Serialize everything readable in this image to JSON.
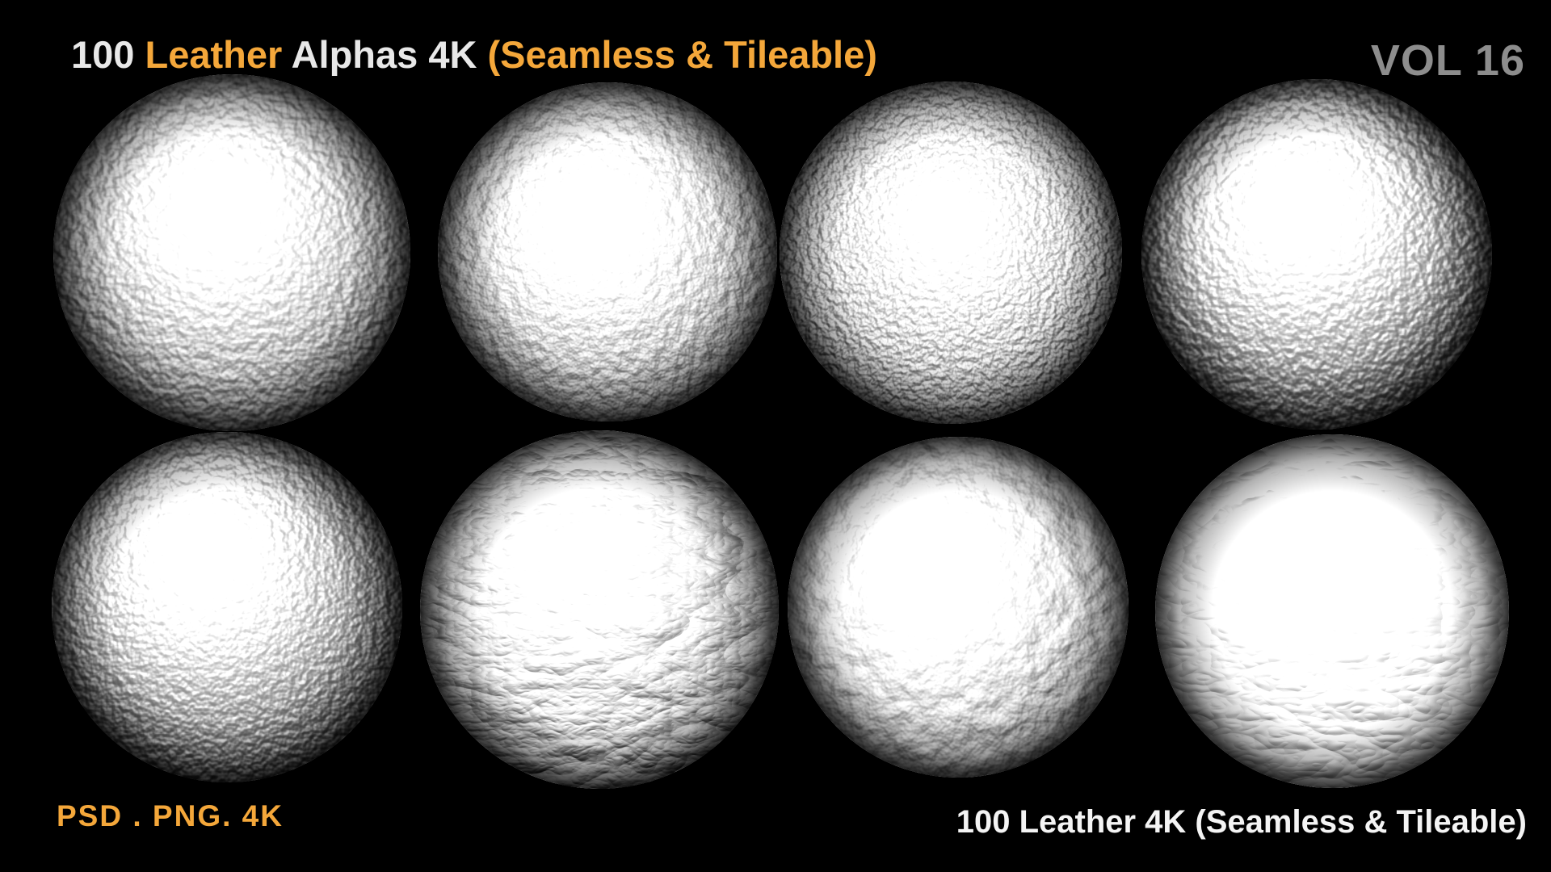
{
  "header": {
    "title_segments": [
      {
        "text": "100 ",
        "color": "#e8e8e8"
      },
      {
        "text": "Leather",
        "color": "#f4a73a"
      },
      {
        "text": " Alphas 4K ",
        "color": "#e8e8e8"
      },
      {
        "text": "(Seamless & Tileable)",
        "color": "#f4a73a"
      }
    ],
    "volume_label": "VOL 16"
  },
  "footer": {
    "file_formats": "PSD . PNG. 4K",
    "product_label": "100 Leather 4K (Seamless & Tileable)"
  },
  "colors": {
    "background": "#000000",
    "accent_orange": "#f4a73a",
    "heading_white": "#e8e8e8",
    "volume_gray": "#8d8d8d",
    "footer_white": "#f4f4f4"
  },
  "spheres": [
    {
      "name": "leather-sphere-1",
      "row": 1,
      "col": 1,
      "texture": "fine grain matte",
      "render": {
        "type": "fractalNoise",
        "freq": "0.095",
        "octaves": 2,
        "seed": 3,
        "surface": 1.6,
        "spec_const": 0.8,
        "spec_exp": 10,
        "diffuse": false,
        "hx": 0.46,
        "hy": 0.36,
        "brightness": 1.0
      }
    },
    {
      "name": "leather-sphere-2",
      "row": 1,
      "col": 2,
      "texture": "fine grain",
      "render": {
        "type": "fractalNoise",
        "freq": "0.075",
        "octaves": 3,
        "seed": 11,
        "surface": 1.8,
        "spec_const": 0.85,
        "spec_exp": 8,
        "diffuse": false,
        "hx": 0.44,
        "hy": 0.38,
        "brightness": 1.0
      }
    },
    {
      "name": "leather-sphere-3",
      "row": 1,
      "col": 3,
      "texture": "pebbled speckled sheen",
      "render": {
        "type": "fractalNoise",
        "freq": "0.13",
        "octaves": 2,
        "seed": 7,
        "surface": 2.1,
        "spec_const": 0.8,
        "spec_exp": 6,
        "diffuse": false,
        "hx": 0.48,
        "hy": 0.38,
        "brightness": 0.98
      }
    },
    {
      "name": "leather-sphere-4",
      "row": 1,
      "col": 4,
      "texture": "smooth glossy grain",
      "render": {
        "type": "fractalNoise",
        "freq": "0.10",
        "octaves": 2,
        "seed": 5,
        "surface": 1.3,
        "spec_const": 1.1,
        "spec_exp": 18,
        "diffuse": false,
        "hx": 0.44,
        "hy": 0.34,
        "brightness": 1.04
      }
    },
    {
      "name": "leather-sphere-5",
      "row": 2,
      "col": 1,
      "texture": "soft fine grain",
      "render": {
        "type": "fractalNoise",
        "freq": "0.11",
        "octaves": 2,
        "seed": 2,
        "surface": 1.2,
        "spec_const": 1.0,
        "spec_exp": 16,
        "diffuse": false,
        "hx": 0.42,
        "hy": 0.33,
        "brightness": 1.02
      }
    },
    {
      "name": "leather-sphere-6",
      "row": 2,
      "col": 2,
      "texture": "deep wrinkled creases",
      "render": {
        "type": "turbulence",
        "freq": "0.012 0.024",
        "octaves": 4,
        "seed": 9,
        "surface": 3.6,
        "spec_const": 0.95,
        "spec_exp": 7,
        "diffuse": true,
        "hx": 0.43,
        "hy": 0.34,
        "brightness": 0.96
      }
    },
    {
      "name": "leather-sphere-7",
      "row": 2,
      "col": 3,
      "texture": "crumpled rough",
      "render": {
        "type": "fractalNoise",
        "freq": "0.032",
        "octaves": 4,
        "seed": 14,
        "surface": 3.0,
        "spec_const": 0.95,
        "spec_exp": 7,
        "diffuse": true,
        "hx": 0.4,
        "hy": 0.36,
        "brightness": 1.0
      }
    },
    {
      "name": "leather-sphere-8",
      "row": 2,
      "col": 4,
      "texture": "soft wrinkled glossy",
      "render": {
        "type": "turbulence",
        "freq": "0.014 0.028",
        "octaves": 3,
        "seed": 21,
        "surface": 2.6,
        "spec_const": 1.15,
        "spec_exp": 5,
        "diffuse": true,
        "hx": 0.46,
        "hy": 0.34,
        "brightness": 1.06
      }
    }
  ]
}
